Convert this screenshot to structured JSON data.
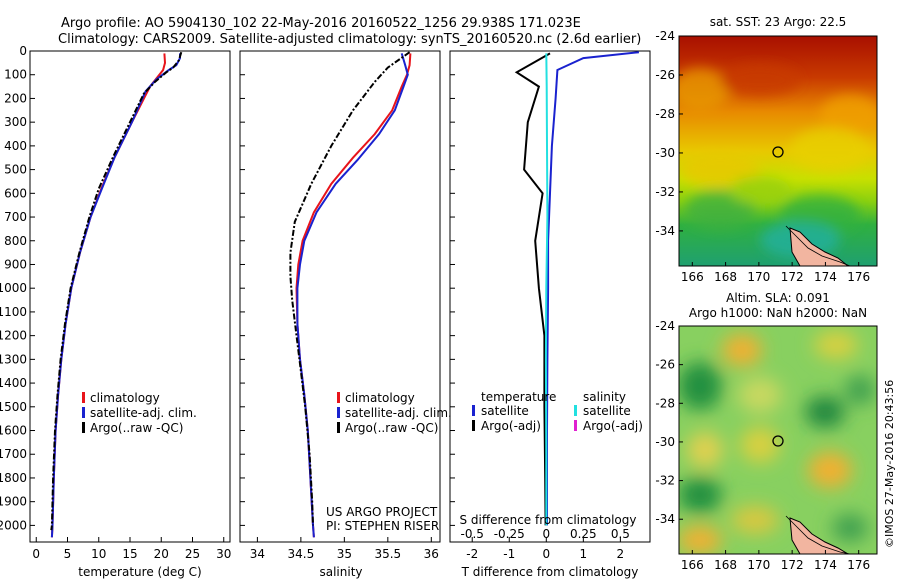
{
  "header": {
    "line1": "Argo profile: AO 5904130_102 22-May-2016 20160522_1256 29.938S 171.023E",
    "line2": "Climatology: CARS2009. Satellite-adjusted climatology: synTS_20160520.nc (2.6d earlier)"
  },
  "side_stamp": "©IMOS 27-May-2016 20:43:56",
  "credits": {
    "line1": "US ARGO PROJECT",
    "line2": "PI: STEPHEN RISER"
  },
  "colors": {
    "climatology": "#e8141b",
    "satellite": "#1a22cf",
    "argo": "#000000",
    "cyan": "#22e0e0",
    "magenta": "#e020d0"
  },
  "chart_data": [
    {
      "id": "temperature",
      "type": "line",
      "xlabel": "temperature (deg C)",
      "ylabel": "",
      "xlim": [
        -1,
        31
      ],
      "ylim": [
        2070,
        0
      ],
      "xticks": [
        0,
        5,
        10,
        15,
        20,
        25,
        30
      ],
      "yticks": [
        0,
        100,
        200,
        300,
        400,
        500,
        600,
        700,
        800,
        900,
        1000,
        1100,
        1200,
        1300,
        1400,
        1500,
        1600,
        1700,
        1800,
        1900,
        2000
      ],
      "legend": [
        "climatology",
        "satellite-adj. clim.",
        "Argo(..raw -QC)"
      ],
      "series": [
        {
          "name": "climatology",
          "points": [
            [
              20.5,
              10
            ],
            [
              20.6,
              50
            ],
            [
              20.3,
              80
            ],
            [
              18.2,
              150
            ],
            [
              15.3,
              300
            ],
            [
              12.5,
              450
            ],
            [
              10.4,
              580
            ],
            [
              8.7,
              700
            ],
            [
              7.0,
              850
            ],
            [
              5.6,
              1000
            ],
            [
              4.7,
              1150
            ],
            [
              4.0,
              1300
            ],
            [
              3.5,
              1450
            ],
            [
              3.1,
              1600
            ],
            [
              2.8,
              1800
            ],
            [
              2.6,
              2000
            ],
            [
              2.5,
              2050
            ]
          ]
        },
        {
          "name": "satellite-adj. clim.",
          "points": [
            [
              23.0,
              10
            ],
            [
              23.0,
              30
            ],
            [
              22.4,
              60
            ],
            [
              21.2,
              80
            ],
            [
              19.2,
              120
            ],
            [
              17.5,
              170
            ],
            [
              15.3,
              300
            ],
            [
              12.5,
              450
            ],
            [
              10.5,
              580
            ],
            [
              8.7,
              700
            ],
            [
              7.0,
              850
            ],
            [
              5.6,
              1000
            ],
            [
              4.7,
              1150
            ],
            [
              4.0,
              1300
            ],
            [
              3.5,
              1450
            ],
            [
              3.1,
              1600
            ],
            [
              2.8,
              1800
            ],
            [
              2.6,
              2000
            ],
            [
              2.5,
              2050
            ]
          ]
        },
        {
          "name": "Argo(..raw -QC)",
          "points": [
            [
              23.2,
              5
            ],
            [
              22.8,
              40
            ],
            [
              21.9,
              70
            ],
            [
              20.8,
              90
            ],
            [
              19.0,
              130
            ],
            [
              17.2,
              180
            ],
            [
              15.0,
              300
            ],
            [
              12.4,
              440
            ],
            [
              10.0,
              580
            ],
            [
              8.5,
              700
            ],
            [
              6.9,
              850
            ],
            [
              5.5,
              1000
            ],
            [
              4.6,
              1150
            ],
            [
              3.9,
              1300
            ],
            [
              3.4,
              1450
            ],
            [
              3.0,
              1600
            ],
            [
              2.7,
              1800
            ],
            [
              2.5,
              2000
            ],
            [
              2.4,
              2020
            ]
          ]
        }
      ]
    },
    {
      "id": "salinity",
      "type": "line",
      "xlabel": "salinity",
      "xlim": [
        33.8,
        36.1
      ],
      "ylim": [
        2070,
        0
      ],
      "xticks": [
        34,
        34.5,
        35,
        35.5,
        36
      ],
      "legend": [
        "climatology",
        "satellite-adj. clim.",
        "Argo(..raw -QC)"
      ],
      "series": [
        {
          "name": "climatology",
          "points": [
            [
              35.76,
              10
            ],
            [
              35.75,
              60
            ],
            [
              35.72,
              100
            ],
            [
              35.66,
              150
            ],
            [
              35.55,
              250
            ],
            [
              35.35,
              350
            ],
            [
              35.1,
              450
            ],
            [
              34.85,
              560
            ],
            [
              34.65,
              680
            ],
            [
              34.52,
              800
            ],
            [
              34.47,
              900
            ],
            [
              34.45,
              1000
            ],
            [
              34.46,
              1150
            ],
            [
              34.49,
              1300
            ],
            [
              34.54,
              1450
            ],
            [
              34.58,
              1600
            ],
            [
              34.61,
              1800
            ],
            [
              34.64,
              2000
            ],
            [
              34.65,
              2050
            ]
          ]
        },
        {
          "name": "satellite-adj. clim.",
          "points": [
            [
              35.66,
              10
            ],
            [
              35.7,
              60
            ],
            [
              35.73,
              100
            ],
            [
              35.68,
              150
            ],
            [
              35.58,
              250
            ],
            [
              35.4,
              350
            ],
            [
              35.15,
              460
            ],
            [
              34.9,
              560
            ],
            [
              34.68,
              680
            ],
            [
              34.54,
              800
            ],
            [
              34.49,
              900
            ],
            [
              34.46,
              1000
            ],
            [
              34.46,
              1150
            ],
            [
              34.49,
              1300
            ],
            [
              34.54,
              1450
            ],
            [
              34.58,
              1600
            ],
            [
              34.61,
              1800
            ],
            [
              34.64,
              2000
            ],
            [
              34.65,
              2050
            ]
          ]
        },
        {
          "name": "Argo(..raw -QC)",
          "points": [
            [
              35.75,
              5
            ],
            [
              35.5,
              70
            ],
            [
              35.35,
              130
            ],
            [
              35.1,
              250
            ],
            [
              34.85,
              400
            ],
            [
              34.62,
              560
            ],
            [
              34.43,
              720
            ],
            [
              34.38,
              850
            ],
            [
              34.38,
              950
            ],
            [
              34.4,
              1050
            ],
            [
              34.45,
              1200
            ],
            [
              34.5,
              1350
            ],
            [
              34.55,
              1500
            ],
            [
              34.6,
              1700
            ],
            [
              34.63,
              1900
            ],
            [
              34.64,
              2000
            ]
          ]
        }
      ]
    },
    {
      "id": "difference",
      "type": "line",
      "xlabel": "T difference from climatology",
      "xlabel_top": "S difference from climatology",
      "xlim": [
        -2.6,
        2.8
      ],
      "ylim": [
        2070,
        0
      ],
      "xticks": [
        -2,
        -1,
        0,
        1,
        2
      ],
      "xticks_top": [
        -0.5,
        -0.25,
        0,
        0.25,
        0.5
      ],
      "legend_temperature_title": "temperature",
      "legend_salinity_title": "salinity",
      "legend_temperature": [
        "satellite",
        "Argo(-adj)"
      ],
      "legend_salinity": [
        "satellite",
        "Argo(-adj)"
      ],
      "series": [
        {
          "name": "T satellite",
          "points": [
            [
              2.5,
              5
            ],
            [
              1.0,
              30
            ],
            [
              0.3,
              80
            ],
            [
              0.25,
              200
            ],
            [
              0.15,
              400
            ],
            [
              0.1,
              600
            ],
            [
              0.05,
              800
            ],
            [
              0.05,
              1000
            ],
            [
              0.03,
              1300
            ],
            [
              0.02,
              1600
            ],
            [
              0.02,
              2000
            ]
          ]
        },
        {
          "name": "T Argo(-adj)",
          "points": [
            [
              0.1,
              10
            ],
            [
              -0.8,
              90
            ],
            [
              -0.2,
              150
            ],
            [
              -0.5,
              300
            ],
            [
              -0.6,
              500
            ],
            [
              -0.1,
              600
            ],
            [
              -0.3,
              800
            ],
            [
              -0.2,
              1000
            ],
            [
              -0.05,
              1200
            ],
            [
              -0.05,
              1500
            ],
            [
              -0.03,
              1800
            ],
            [
              -0.02,
              2000
            ]
          ]
        },
        {
          "name": "S satellite",
          "points": [
            [
              0.0,
              10
            ],
            [
              0.01,
              150
            ],
            [
              0.02,
              400
            ],
            [
              0.03,
              700
            ],
            [
              0.0,
              1000
            ],
            [
              -0.01,
              1300
            ],
            [
              0.0,
              1700
            ],
            [
              0.0,
              2000
            ]
          ]
        }
      ]
    }
  ],
  "maps": [
    {
      "id": "sst",
      "title": "sat. SST: 23 Argo: 22.5",
      "xticks": [
        166,
        168,
        170,
        172,
        174,
        176
      ],
      "yticks": [
        -24,
        -26,
        -28,
        -30,
        -32,
        -34
      ],
      "xlim": [
        165.2,
        177.1
      ],
      "ylim": [
        -24,
        -35.8
      ],
      "marker": [
        171.02,
        -29.94
      ]
    },
    {
      "id": "sla",
      "title": "Altim. SLA: 0.091",
      "subtitle": "Argo h1000: NaN h2000: NaN",
      "xticks": [
        166,
        168,
        170,
        172,
        174,
        176
      ],
      "yticks": [
        -24,
        -26,
        -28,
        -30,
        -32,
        -34
      ],
      "xlim": [
        165.2,
        177.1
      ],
      "ylim": [
        -24,
        -35.8
      ],
      "marker": [
        171.02,
        -29.94
      ]
    }
  ]
}
